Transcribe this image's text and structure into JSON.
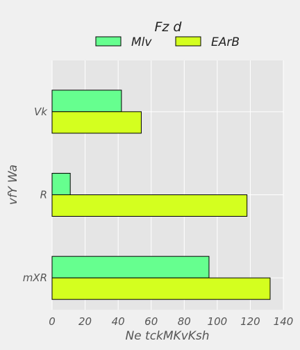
{
  "chart_data": {
    "type": "bar",
    "orientation": "horizontal",
    "legend": {
      "title": "Fz d",
      "placement": "top-center"
    },
    "categories": [
      "Vk",
      "R",
      "mXR"
    ],
    "series": [
      {
        "name": "Mlv",
        "values": [
          42,
          11,
          95
        ],
        "color": "#66ff8f"
      },
      {
        "name": "EArB",
        "values": [
          54,
          118,
          132
        ],
        "color": "#d4ff1f"
      }
    ],
    "xlabel": "Ne tckMKvKsh",
    "ylabel": "vfY Wa",
    "xlim": [
      0,
      140
    ],
    "xticks": [
      "0",
      "20",
      "40",
      "60",
      "80",
      "100",
      "120",
      "140"
    ],
    "grid": true,
    "colors": {
      "background": "#f0f0f0",
      "plot_area": "#e5e5e5",
      "grid": "#ffffff",
      "text": "#555555",
      "edge": "#000000"
    }
  }
}
